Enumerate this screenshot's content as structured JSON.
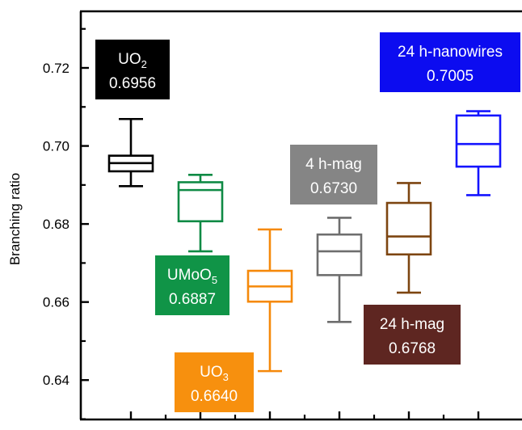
{
  "chart_data": {
    "type": "box",
    "title": "",
    "xlabel": "",
    "ylabel": "Branching ratio",
    "ylim": [
      0.6299,
      0.7345
    ],
    "yticks": [
      0.64,
      0.66,
      0.68,
      0.7,
      0.72
    ],
    "ytick_labels": [
      "0.64",
      "0.66",
      "0.68",
      "0.70",
      "0.72"
    ],
    "grid": false,
    "series": [
      {
        "name": "UO2",
        "label_main": "UO",
        "label_sub": "2",
        "label_value": "0.6956",
        "color": "#000000",
        "label_bg": "#000000",
        "whisker_low": 0.6897,
        "q1": 0.6935,
        "median": 0.6956,
        "q3": 0.6975,
        "whisker_high": 0.7069
      },
      {
        "name": "UMoO5",
        "label_main": "UMoO",
        "label_sub": "5",
        "label_value": "0.6887",
        "color": "#0f8a45",
        "label_bg": "#109447",
        "whisker_low": 0.673,
        "q1": 0.6807,
        "median": 0.6887,
        "q3": 0.6907,
        "whisker_high": 0.6926
      },
      {
        "name": "UO3",
        "label_main": "UO",
        "label_sub": "3",
        "label_value": "0.6640",
        "color": "#f5890a",
        "label_bg": "#f7900e",
        "whisker_low": 0.6423,
        "q1": 0.6601,
        "median": 0.664,
        "q3": 0.668,
        "whisker_high": 0.6786
      },
      {
        "name": "4 h-mag",
        "label_main": "4 h-mag",
        "label_sub": "",
        "label_value": "0.6730",
        "color": "#6e6e6e",
        "label_bg": "#858585",
        "whisker_low": 0.6549,
        "q1": 0.6669,
        "median": 0.673,
        "q3": 0.6773,
        "whisker_high": 0.6816
      },
      {
        "name": "24 h-mag",
        "label_main": "24 h-mag",
        "label_sub": "",
        "label_value": "0.6768",
        "color": "#7d4510",
        "label_bg": "#5e2621",
        "whisker_low": 0.6624,
        "q1": 0.6722,
        "median": 0.6768,
        "q3": 0.6854,
        "whisker_high": 0.6905
      },
      {
        "name": "24 h-nanowires",
        "label_main": "24 h-nanowires",
        "label_sub": "",
        "label_value": "0.7005",
        "color": "#1414ff",
        "label_bg": "#0c0cf0",
        "whisker_low": 0.6874,
        "q1": 0.6947,
        "median": 0.7005,
        "q3": 0.7078,
        "whisker_high": 0.7089
      }
    ]
  }
}
